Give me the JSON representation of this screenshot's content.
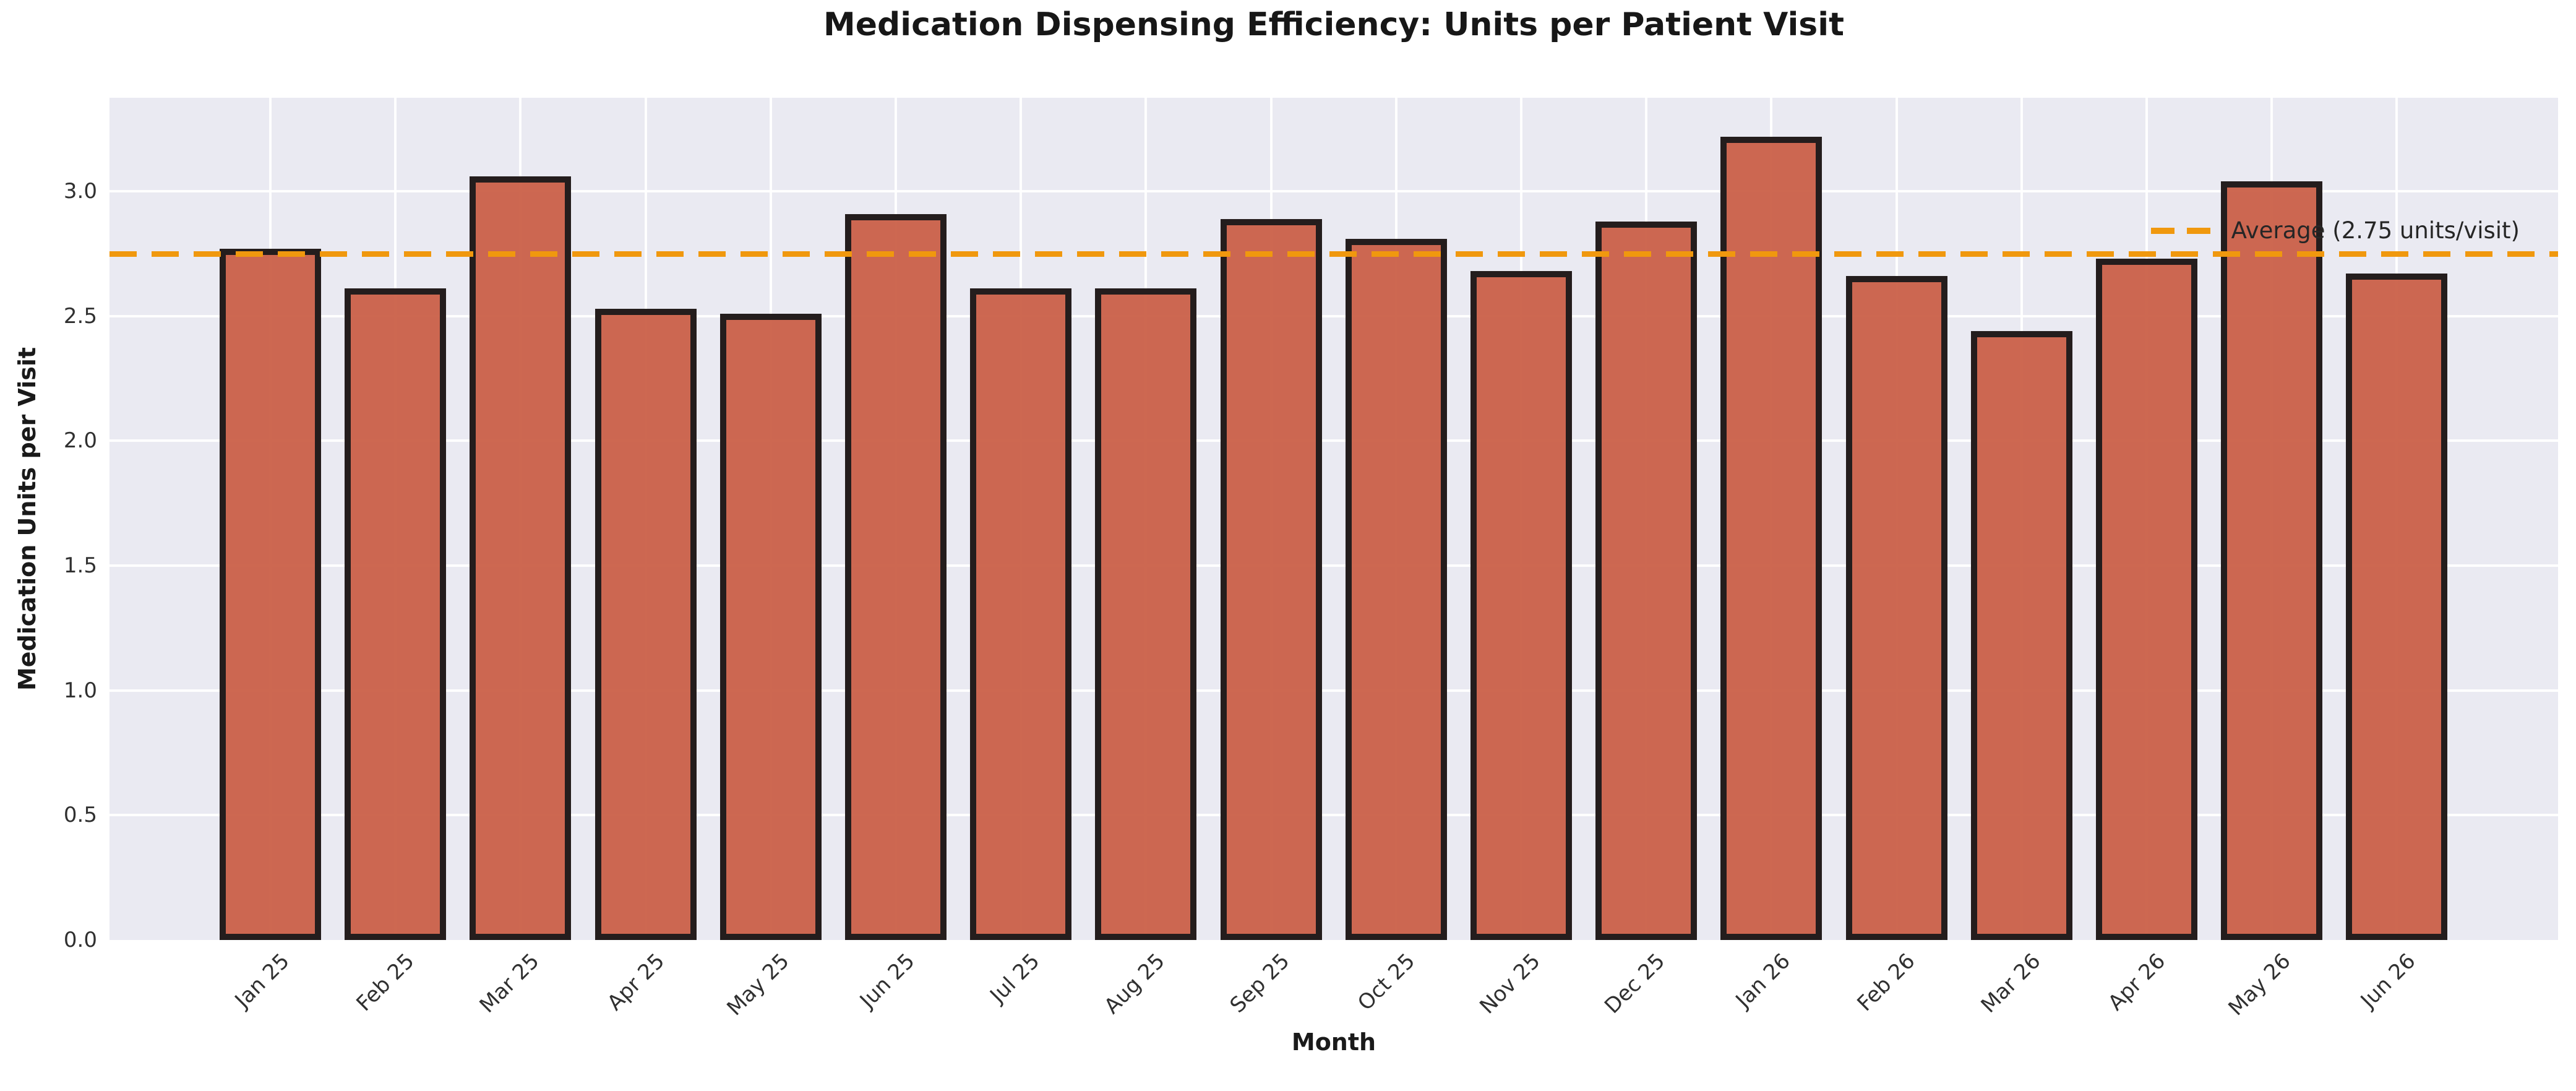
{
  "chart_data": {
    "type": "bar",
    "title": "Medication Dispensing Efficiency: Units per Patient Visit",
    "xlabel": "Month",
    "ylabel": "Medication Units per Visit",
    "categories": [
      "Jan 25",
      "Feb 25",
      "Mar 25",
      "Apr 25",
      "May 25",
      "Jun 25",
      "Jul 25",
      "Aug 25",
      "Sep 25",
      "Oct 25",
      "Nov 25",
      "Dec 25",
      "Jan 26",
      "Feb 26",
      "Mar 26",
      "Apr 26",
      "May 26",
      "Jun 26"
    ],
    "values": [
      2.77,
      2.61,
      3.06,
      2.53,
      2.51,
      2.91,
      2.61,
      2.61,
      2.89,
      2.81,
      2.68,
      2.88,
      3.22,
      2.66,
      2.44,
      2.73,
      3.04,
      2.67
    ],
    "ylim": [
      0,
      3.375
    ],
    "yticks": [
      0.0,
      0.5,
      1.0,
      1.5,
      2.0,
      2.5,
      3.0
    ],
    "ytick_decimals": 1,
    "grid": true,
    "average_line": {
      "value": 2.75,
      "label": "Average (2.75 units/visit)",
      "style": "dashed"
    },
    "legend": {
      "position": "upper right",
      "entries": [
        "Average (2.75 units/visit)"
      ]
    },
    "colors": {
      "bar_fill": "#ca6048",
      "bar_edge": "#241d1d",
      "plot_background": "#eaeaf2",
      "gridline": "#ffffff",
      "average_line": "#f0980e",
      "title_text": "#171717",
      "tick_text": "#303030"
    }
  }
}
